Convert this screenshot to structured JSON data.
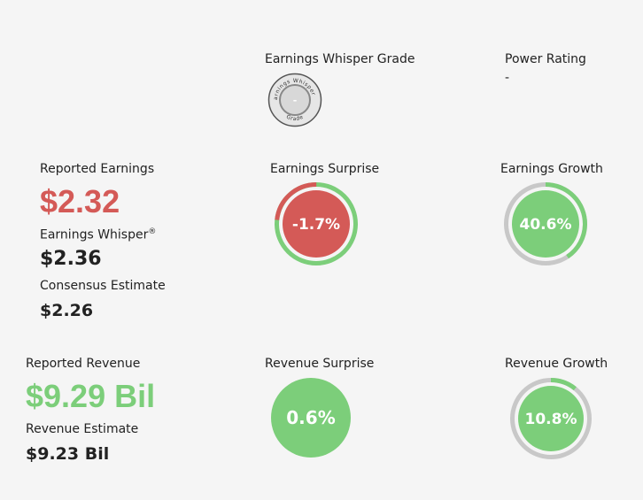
{
  "grade": {
    "label": "Earnings Whisper Grade",
    "value": "-",
    "ring_top": "Earnings Whisper ®",
    "ring_bottom": "Grade"
  },
  "power_rating": {
    "label": "Power Rating",
    "value": "-"
  },
  "earnings": {
    "reported_label": "Reported Earnings",
    "reported_value": "$2.32",
    "whisper_label": "Earnings Whisper",
    "whisper_mark": "®",
    "whisper_value": "$2.36",
    "consensus_label": "Consensus Estimate",
    "consensus_value": "$2.26",
    "surprise_label": "Earnings Surprise",
    "surprise_value": "-1.7%",
    "surprise_fraction": 0.017,
    "growth_label": "Earnings Growth",
    "growth_value": "40.6%",
    "growth_fraction": 0.406
  },
  "revenue": {
    "reported_label": "Reported Revenue",
    "reported_value": "$9.29 Bil",
    "estimate_label": "Revenue Estimate",
    "estimate_value": "$9.23 Bil",
    "surprise_label": "Revenue Surprise",
    "surprise_value": "0.6%",
    "growth_label": "Revenue Growth",
    "growth_value": "10.8%",
    "growth_fraction": 0.108
  },
  "colors": {
    "red": "#d45a57",
    "green": "#7cce7a",
    "gray_ring": "#c8c8c8",
    "text": "#222222"
  }
}
